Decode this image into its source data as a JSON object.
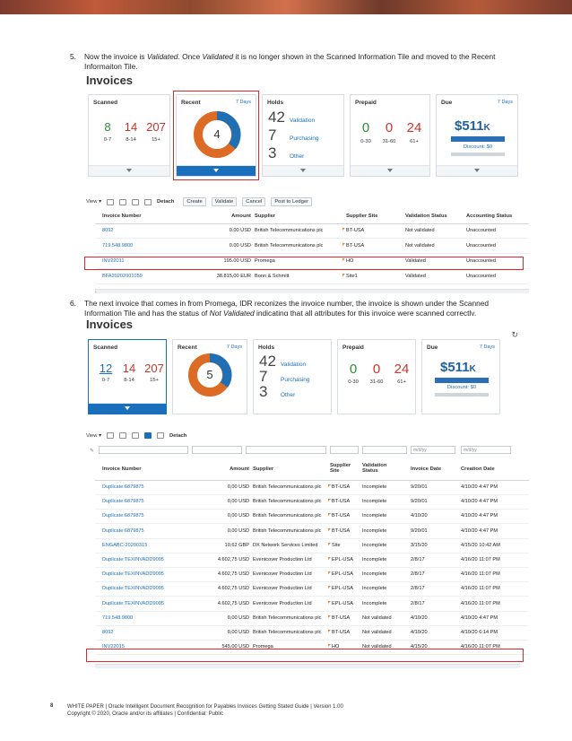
{
  "step5": {
    "num": "5.",
    "text_a": "Now the invoice is ",
    "text_b": "Validated",
    "text_c": ". Once ",
    "text_d": "Validated",
    "text_e": " it is no longer shown in the Scanned Information Tile and moved to the Recent",
    "line2": "Informaiton Tile."
  },
  "step6": {
    "num": "6.",
    "line1": "The next invoice that comes in from Promega, IDR reconizes the invoice number, the invoice is shown under the Scanned",
    "line2_a": "Information Tile and has the status of ",
    "line2_b": "Not Validated",
    "line2_c": " indicating that all attributes for this invoice were scanned correctly."
  },
  "shot1": {
    "title": "Invoices",
    "tiles": {
      "scanned": {
        "title": "Scanned",
        "vals": [
          "8",
          "14",
          "207"
        ],
        "labels": [
          "0-7",
          "8-14",
          "15+"
        ]
      },
      "recent": {
        "title": "Recent",
        "link": "7 Days",
        "count": "4"
      },
      "holds": {
        "title": "Holds",
        "rows": [
          {
            "n": "42",
            "label": "Validation"
          },
          {
            "n": "7",
            "label": "Purchasing"
          },
          {
            "n": "3",
            "label": "Other"
          }
        ]
      },
      "prepaid": {
        "title": "Prepaid",
        "vals": [
          "0",
          "0",
          "24"
        ],
        "labels": [
          "0-30",
          "31-60",
          "61+"
        ]
      },
      "due": {
        "title": "Due",
        "link": "7 Days",
        "amount": "$511",
        "suffix": "K",
        "discount": "Discount: $0"
      }
    },
    "toolbar": {
      "view": "View ▾",
      "detach": "Detach",
      "buttons": [
        "Create",
        "Validate",
        "Cancel",
        "Post to Ledger"
      ]
    },
    "columns": [
      "Invoice Number",
      "Amount",
      "Supplier",
      "Supplier Site",
      "Validation Status",
      "Accounting Status"
    ],
    "rows": [
      [
        "8092",
        "0.00 USD",
        "British Telecommunications plc",
        "BT-USA",
        "Not validated",
        "Unaccounted"
      ],
      [
        "719.548.9800",
        "0.00 USD",
        "British Telecommunications plc",
        "BT-USA",
        "Not validated",
        "Unaccounted"
      ],
      [
        "INV22011",
        "195.00 USD",
        "Promega",
        "HO",
        "Validated",
        "Unaccounted"
      ],
      [
        "BFA20202001059",
        "38.815,00 EUR",
        "Bonn & Schmitt",
        "Site1",
        "Validated",
        "Unaccounted"
      ]
    ]
  },
  "shot2": {
    "title": "Invoices",
    "tiles": {
      "scanned": {
        "title": "Scanned",
        "vals": [
          "12",
          "14",
          "207"
        ],
        "labels": [
          "0-7",
          "8-14",
          "15+"
        ]
      },
      "recent": {
        "title": "Recent",
        "link": "7 Days",
        "count": "5"
      },
      "holds": {
        "title": "Holds",
        "rows": [
          {
            "n": "42",
            "label": "Validation"
          },
          {
            "n": "7",
            "label": "Purchasing"
          },
          {
            "n": "3",
            "label": "Other"
          }
        ]
      },
      "prepaid": {
        "title": "Prepaid",
        "vals": [
          "0",
          "0",
          "24"
        ],
        "labels": [
          "0-30",
          "31-60",
          "61+"
        ]
      },
      "due": {
        "title": "Due",
        "link": "7 Days",
        "amount": "$511",
        "suffix": "K",
        "discount": "Discount: $0"
      }
    },
    "toolbar": {
      "view": "View ▾",
      "detach": "Detach"
    },
    "filters": {
      "date1": "m/d/yy",
      "date2": "m/d/yy"
    },
    "columns": [
      "Invoice Number",
      "Amount",
      "Supplier",
      "Supplier Site",
      "Validation Status",
      "Invoice Date",
      "Creation Date"
    ],
    "rows": [
      [
        "Duplicate:6879875",
        "0,00 USD",
        "British Telecommunications plc",
        "BT-USA",
        "Incomplete",
        "9/20/01",
        "4/10/20 4:47 PM"
      ],
      [
        "Duplicate:6879875",
        "0,00 USD",
        "British Telecommunications plc",
        "BT-USA",
        "Incomplete",
        "9/20/01",
        "4/10/20 4:47 PM"
      ],
      [
        "Duplicate:6879875",
        "0,00 USD",
        "British Telecommunications plc",
        "BT-USA",
        "Incomplete",
        "4/10/20",
        "4/10/20 4:47 PM"
      ],
      [
        "Duplicate:6879875",
        "0,00 USD",
        "British Telecommunications plc",
        "BT-USA",
        "Incomplete",
        "9/20/01",
        "4/10/20 4:47 PM"
      ],
      [
        "ENGABC-20200315",
        "10,62 GBP",
        "DX Network Services Limited",
        "Site",
        "Incomplete",
        "3/15/20",
        "4/15/20 10:42 AM"
      ],
      [
        "Duplicate:TEXINVADD9005",
        "4.602,75 USD",
        "Eventcover Production Ltd",
        "EPL-USA",
        "Incomplete",
        "2/8/17",
        "4/16/20 11:07 PM"
      ],
      [
        "Duplicate:TEXINVADD9005",
        "4.602,75 USD",
        "Eventcover Production Ltd",
        "EPL-USA",
        "Incomplete",
        "2/8/17",
        "4/16/20 11:07 PM"
      ],
      [
        "Duplicate:TEXINVADD9005",
        "4.602,75 USD",
        "Eventcover Production Ltd",
        "EPL-USA",
        "Incomplete",
        "2/8/17",
        "4/16/20 11:07 PM"
      ],
      [
        "Duplicate:TEXINVADD9005",
        "4.602,75 USD",
        "Eventcover Production Ltd",
        "EPL-USA",
        "Incomplete",
        "2/8/17",
        "4/16/20 11:07 PM"
      ],
      [
        "719.548.9800",
        "0,00 USD",
        "British Telecommunications plc",
        "BT-USA",
        "Not validated",
        "4/10/20",
        "4/10/20 4:47 PM"
      ],
      [
        "8092",
        "0,00 USD",
        "British Telecommunications plc",
        "BT-USA",
        "Not validated",
        "4/10/20",
        "4/10/20 6:14 PM"
      ],
      [
        "INV22015",
        "545,00 USD",
        "Promega",
        "HO",
        "Not validated",
        "4/15/20",
        "4/16/20 11:07 PM"
      ]
    ]
  },
  "footer": {
    "page": "8",
    "line1": "WHITE PAPER | Oracle Intelligent Document Recognition for Payables Invoices Getting Stated Guide | Version 1.00",
    "line2": "Copyright © 2020, Oracle and/or its affiliates | Confidential: Public"
  },
  "colors": {
    "accent": "#1a6fbd",
    "highlight": "#d92a2a",
    "donut_blue": "#1f6fb5",
    "donut_orange": "#dc6b25",
    "green": "#2f8a3a",
    "red": "#c9342c"
  }
}
